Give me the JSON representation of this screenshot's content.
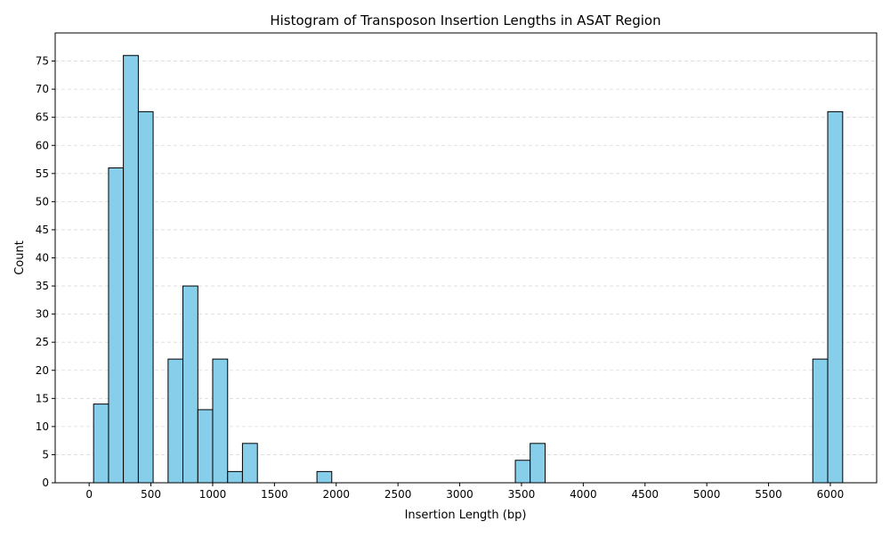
{
  "chart_data": {
    "type": "bar",
    "title": "Histogram of Transposon Insertion Lengths in ASAT Region",
    "xlabel": "Insertion Length (bp)",
    "ylabel": "Count",
    "xlim": [
      -275,
      6375
    ],
    "ylim": [
      0,
      80
    ],
    "xticks": [
      0,
      500,
      1000,
      1500,
      2000,
      2500,
      3000,
      3500,
      4000,
      4500,
      5000,
      5500,
      6000
    ],
    "yticks": [
      0,
      5,
      10,
      15,
      20,
      25,
      30,
      35,
      40,
      45,
      50,
      55,
      60,
      65,
      70,
      75
    ],
    "grid": "y-dashed",
    "bar_color": "#87CEEB",
    "edge_color": "#000000",
    "bins": [
      {
        "x0": 36,
        "x1": 157,
        "count": 14
      },
      {
        "x0": 157,
        "x1": 277,
        "count": 56
      },
      {
        "x0": 277,
        "x1": 398,
        "count": 76
      },
      {
        "x0": 398,
        "x1": 518,
        "count": 66
      },
      {
        "x0": 639,
        "x1": 759,
        "count": 22
      },
      {
        "x0": 759,
        "x1": 880,
        "count": 35
      },
      {
        "x0": 880,
        "x1": 1000,
        "count": 13
      },
      {
        "x0": 1000,
        "x1": 1121,
        "count": 22
      },
      {
        "x0": 1121,
        "x1": 1241,
        "count": 2
      },
      {
        "x0": 1241,
        "x1": 1362,
        "count": 7
      },
      {
        "x0": 1844,
        "x1": 1964,
        "count": 2
      },
      {
        "x0": 3450,
        "x1": 3570,
        "count": 4
      },
      {
        "x0": 3570,
        "x1": 3691,
        "count": 7
      },
      {
        "x0": 5858,
        "x1": 5979,
        "count": 22
      },
      {
        "x0": 5979,
        "x1": 6100,
        "count": 66
      }
    ]
  }
}
